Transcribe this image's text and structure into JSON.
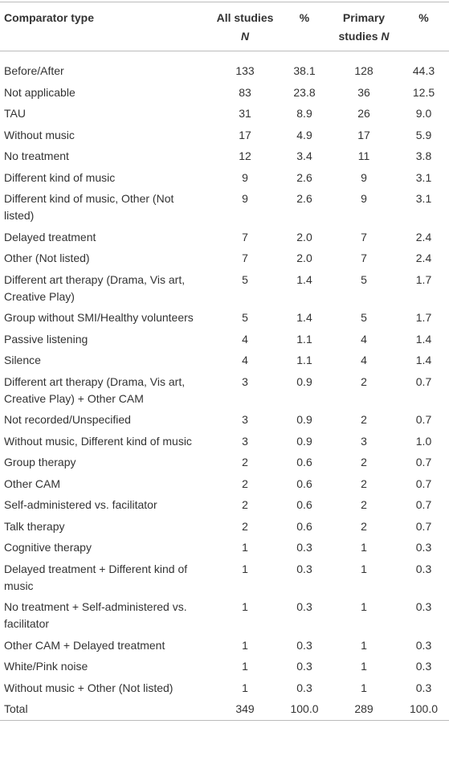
{
  "table": {
    "header": [
      "Comparator type",
      {
        "text": "All studies",
        "italic": "N"
      },
      "%",
      {
        "text": "Primary studies",
        "italic": "N"
      },
      "%"
    ],
    "rows": [
      [
        "Before/After",
        "133",
        "38.1",
        "128",
        "44.3"
      ],
      [
        "Not applicable",
        "83",
        "23.8",
        "36",
        "12.5"
      ],
      [
        "TAU",
        "31",
        "8.9",
        "26",
        "9.0"
      ],
      [
        "Without music",
        "17",
        "4.9",
        "17",
        "5.9"
      ],
      [
        "No treatment",
        "12",
        "3.4",
        "11",
        "3.8"
      ],
      [
        "Different kind of music",
        "9",
        "2.6",
        "9",
        "3.1"
      ],
      [
        "Different kind of music, Other (Not listed)",
        "9",
        "2.6",
        "9",
        "3.1"
      ],
      [
        "Delayed treatment",
        "7",
        "2.0",
        "7",
        "2.4"
      ],
      [
        "Other (Not listed)",
        "7",
        "2.0",
        "7",
        "2.4"
      ],
      [
        "Different art therapy (Drama, Vis art, Creative Play)",
        "5",
        "1.4",
        "5",
        "1.7"
      ],
      [
        "Group without SMI/Healthy volunteers",
        "5",
        "1.4",
        "5",
        "1.7"
      ],
      [
        "Passive listening",
        "4",
        "1.1",
        "4",
        "1.4"
      ],
      [
        "Silence",
        "4",
        "1.1",
        "4",
        "1.4"
      ],
      [
        "Different art therapy (Drama, Vis art, Creative Play) + Other CAM",
        "3",
        "0.9",
        "2",
        "0.7"
      ],
      [
        "Not recorded/Unspecified",
        "3",
        "0.9",
        "2",
        "0.7"
      ],
      [
        "Without music, Different kind of music",
        "3",
        "0.9",
        "3",
        "1.0"
      ],
      [
        "Group therapy",
        "2",
        "0.6",
        "2",
        "0.7"
      ],
      [
        "Other CAM",
        "2",
        "0.6",
        "2",
        "0.7"
      ],
      [
        "Self-administered vs. facilitator",
        "2",
        "0.6",
        "2",
        "0.7"
      ],
      [
        "Talk therapy",
        "2",
        "0.6",
        "2",
        "0.7"
      ],
      [
        "Cognitive therapy",
        "1",
        "0.3",
        "1",
        "0.3"
      ],
      [
        "Delayed treatment + Different kind of music",
        "1",
        "0.3",
        "1",
        "0.3"
      ],
      [
        "No treatment + Self-administered vs. facilitator",
        "1",
        "0.3",
        "1",
        "0.3"
      ],
      [
        "Other CAM + Delayed treatment",
        "1",
        "0.3",
        "1",
        "0.3"
      ],
      [
        "White/Pink noise",
        "1",
        "0.3",
        "1",
        "0.3"
      ],
      [
        "Without music + Other (Not listed)",
        "1",
        "0.3",
        "1",
        "0.3"
      ],
      [
        "Total",
        "349",
        "100.0",
        "289",
        "100.0"
      ]
    ]
  }
}
